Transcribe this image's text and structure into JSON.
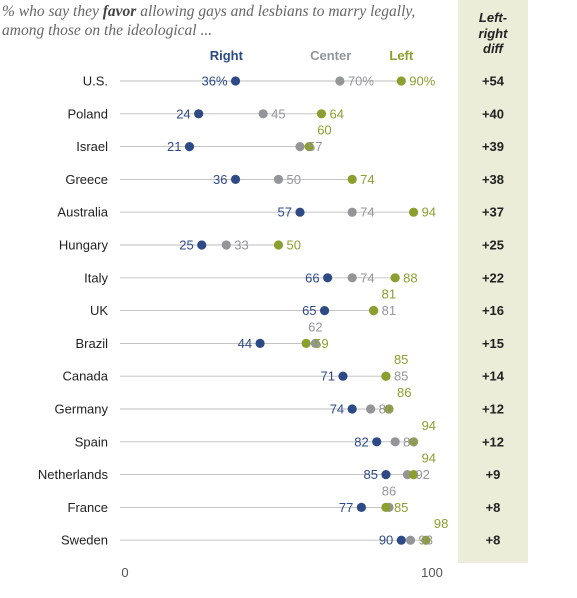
{
  "title": {
    "pre": "% who say they ",
    "emph": "favor",
    "post": " allowing gays and lesbians to marry legally, among those on the ideological ..."
  },
  "diff_header": [
    "Left-",
    "right",
    "diff"
  ],
  "colors": {
    "Right": "#2d4a87",
    "Center": "#939598",
    "Left": "#8a9f2e",
    "panel": "#ecedd9",
    "line": "#bdbdbd"
  },
  "chart_data": {
    "type": "dot",
    "title": "% who say they favor allowing gays and lesbians to marry legally, among those on the ideological ...",
    "xlim": [
      0,
      100
    ],
    "x_ticks": [
      "0",
      "100"
    ],
    "series_order": [
      "Right",
      "Center",
      "Left"
    ],
    "rows": [
      {
        "country": "U.S.",
        "Right": 36,
        "Center": 70,
        "Left": 90,
        "labels": {
          "Right": "36%",
          "Center": "70%",
          "Left": "90%"
        },
        "diff": "+54"
      },
      {
        "country": "Poland",
        "Right": 24,
        "Center": 45,
        "Left": 64,
        "labels": {
          "Right": "24",
          "Center": "45",
          "Left": "64"
        },
        "diff": "+40"
      },
      {
        "country": "Israel",
        "Right": 21,
        "Center": 57,
        "Left": 60,
        "labels": {
          "Right": "21",
          "Center": "57",
          "Left": "60"
        },
        "diff": "+39"
      },
      {
        "country": "Greece",
        "Right": 36,
        "Center": 50,
        "Left": 74,
        "labels": {
          "Right": "36",
          "Center": "50",
          "Left": "74"
        },
        "diff": "+38"
      },
      {
        "country": "Australia",
        "Right": 57,
        "Center": 74,
        "Left": 94,
        "labels": {
          "Right": "57",
          "Center": "74",
          "Left": "94"
        },
        "diff": "+37"
      },
      {
        "country": "Hungary",
        "Right": 25,
        "Center": 33,
        "Left": 50,
        "labels": {
          "Right": "25",
          "Center": "33",
          "Left": "50"
        },
        "diff": "+25"
      },
      {
        "country": "Italy",
        "Right": 66,
        "Center": 74,
        "Left": 88,
        "labels": {
          "Right": "66",
          "Center": "74",
          "Left": "88"
        },
        "diff": "+22"
      },
      {
        "country": "UK",
        "Right": 65,
        "Center": 81,
        "Left": 81,
        "labels": {
          "Right": "65",
          "Center": "81",
          "Left": "81"
        },
        "diff": "+16"
      },
      {
        "country": "Brazil",
        "Right": 44,
        "Center": 62,
        "Left": 59,
        "labels": {
          "Right": "44",
          "Center": "62",
          "Left": "59"
        },
        "diff": "+15"
      },
      {
        "country": "Canada",
        "Right": 71,
        "Center": 85,
        "Left": 85,
        "labels": {
          "Right": "71",
          "Center": "85",
          "Left": "85"
        },
        "diff": "+14"
      },
      {
        "country": "Germany",
        "Right": 74,
        "Center": 80,
        "Left": 86,
        "labels": {
          "Right": "74",
          "Center": "80",
          "Left": "86"
        },
        "diff": "+12"
      },
      {
        "country": "Spain",
        "Right": 82,
        "Center": 88,
        "Left": 94,
        "labels": {
          "Right": "82",
          "Center": "88",
          "Left": "94"
        },
        "diff": "+12"
      },
      {
        "country": "Netherlands",
        "Right": 85,
        "Center": 92,
        "Left": 94,
        "labels": {
          "Right": "85",
          "Center": "92",
          "Left": "94"
        },
        "diff": "+9"
      },
      {
        "country": "France",
        "Right": 77,
        "Center": 86,
        "Left": 85,
        "labels": {
          "Right": "77",
          "Center": "86",
          "Left": "85"
        },
        "diff": "+8"
      },
      {
        "country": "Sweden",
        "Right": 90,
        "Center": 93,
        "Left": 98,
        "labels": {
          "Right": "90",
          "Center": "93",
          "Left": "98"
        },
        "diff": "+8"
      }
    ]
  }
}
